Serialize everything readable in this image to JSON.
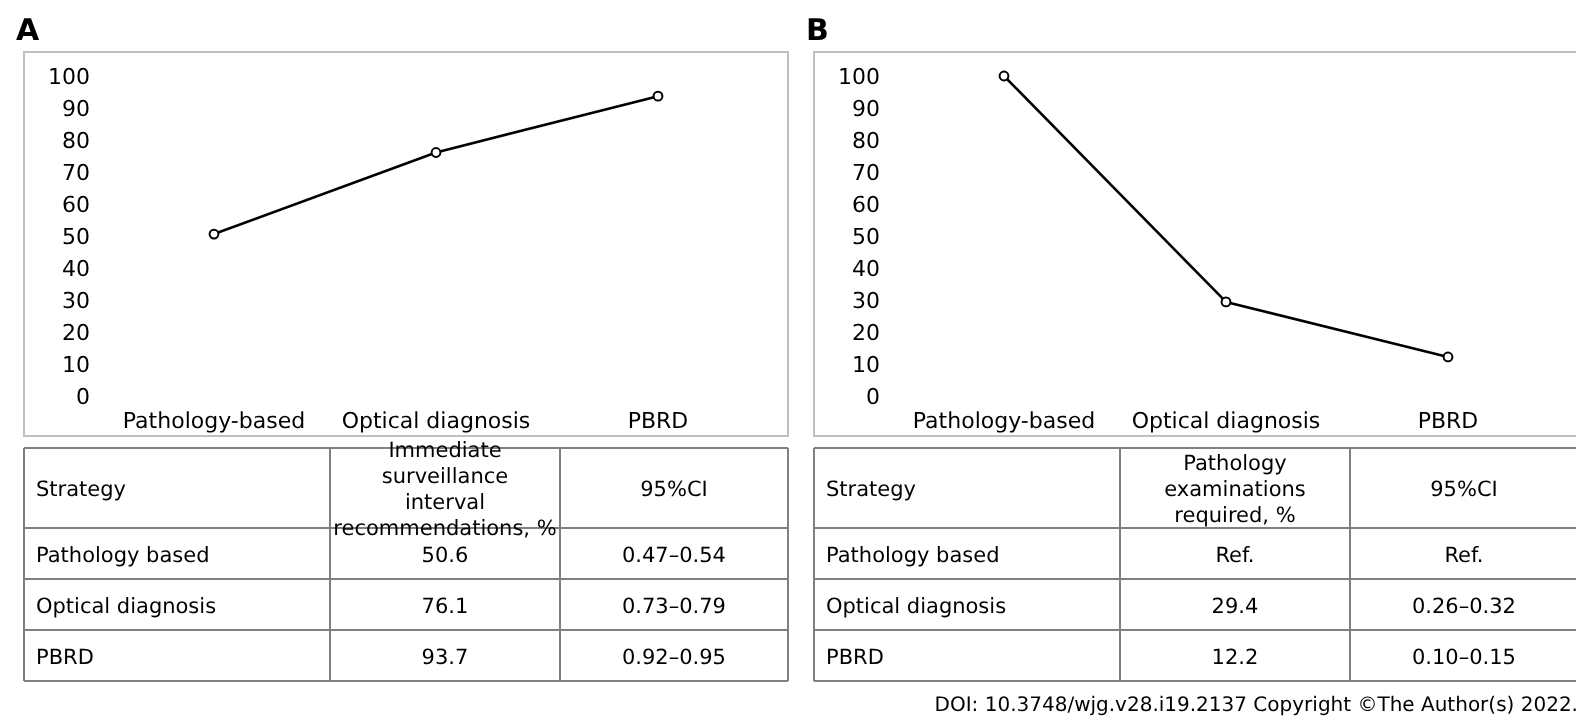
{
  "chart_data": [
    {
      "type": "line",
      "title": "A",
      "categories": [
        "Pathology-based",
        "Optical diagnosis",
        "PBRD"
      ],
      "series": [
        {
          "color": "#000000",
          "values": [
            50.6,
            76.1,
            93.7
          ]
        }
      ],
      "ylim": [
        0,
        100
      ],
      "yticks": [
        0,
        10,
        20,
        30,
        40,
        50,
        60,
        70,
        80,
        90,
        100
      ],
      "marker": "circle",
      "value_labels": [
        "50.6",
        "76.1",
        "93.7"
      ],
      "annotations": [
        "Strategy",
        "Immediate surveillance interval recommendations, %",
        "95%CI",
        "Pathology based",
        "0.47–0.54",
        "Optical diagnosis",
        "0.73–0.79",
        "PBRD",
        "0.92–0.95"
      ]
    },
    {
      "type": "line",
      "title": "B",
      "categories": [
        "Pathology-based",
        "Optical diagnosis",
        "PBRD"
      ],
      "series": [
        {
          "color": "#000000",
          "values": [
            100,
            29.4,
            12.2
          ]
        }
      ],
      "ylim": [
        0,
        100
      ],
      "yticks": [
        0,
        10,
        20,
        30,
        40,
        50,
        60,
        70,
        80,
        90,
        100
      ],
      "marker": "circle",
      "value_labels": [
        "Ref.",
        "29.4",
        "12.2"
      ],
      "annotations": [
        "Strategy",
        "Pathology examinations required, %",
        "95%CI",
        "Pathology based",
        "Ref.",
        "Optical diagnosis",
        "0.26–0.32",
        "PBRD",
        "0.10–0.15",
        "DOI: 10.3748/wjg.v28.i19.2137 Copyright ©The Author(s) 2022."
      ]
    }
  ]
}
